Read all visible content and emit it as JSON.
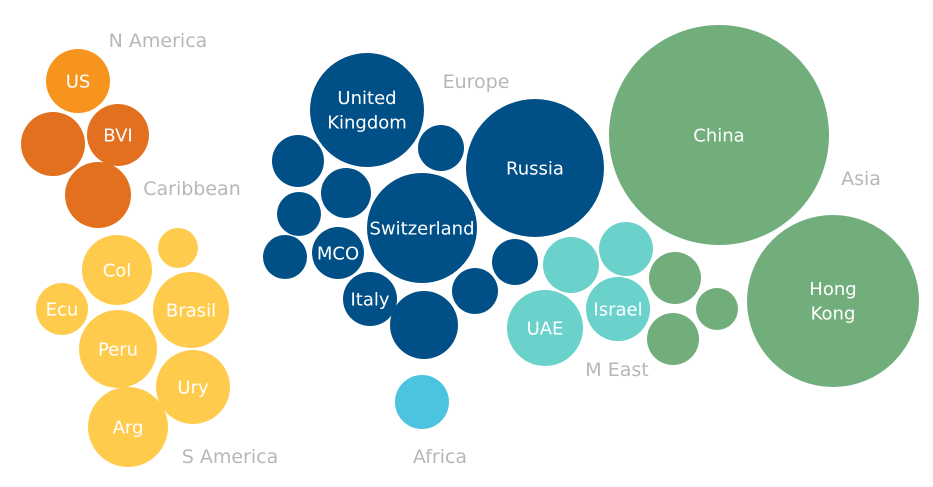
{
  "colors": {
    "north_america": "#f7941d",
    "caribbean": "#e2701f",
    "south_america": "#ffcb4c",
    "europe": "#004f86",
    "africa": "#4cc3df",
    "middle_east": "#6ad1cb",
    "asia": "#71ae7c",
    "region_label": "#b7b7b7",
    "bubble_text": "#ffffff"
  },
  "regions": [
    {
      "key": "north_america",
      "label": "N America"
    },
    {
      "key": "caribbean",
      "label": "Caribbean"
    },
    {
      "key": "south_america",
      "label": "S America"
    },
    {
      "key": "europe",
      "label": "Europe"
    },
    {
      "key": "africa",
      "label": "Africa"
    },
    {
      "key": "middle_east",
      "label": "M East"
    },
    {
      "key": "asia",
      "label": "Asia"
    }
  ],
  "bubbles": [
    {
      "region": "north_america",
      "label": "US"
    },
    {
      "region": "caribbean",
      "label": ""
    },
    {
      "region": "caribbean",
      "label": "BVI"
    },
    {
      "region": "caribbean",
      "label": ""
    },
    {
      "region": "south_america",
      "label": ""
    },
    {
      "region": "south_america",
      "label": "Col"
    },
    {
      "region": "south_america",
      "label": "Ecu"
    },
    {
      "region": "south_america",
      "label": "Brasil"
    },
    {
      "region": "south_america",
      "label": "Peru"
    },
    {
      "region": "south_america",
      "label": "Ury"
    },
    {
      "region": "south_america",
      "label": "Arg"
    },
    {
      "region": "europe",
      "label": "United Kingdom"
    },
    {
      "region": "europe",
      "label": ""
    },
    {
      "region": "europe",
      "label": ""
    },
    {
      "region": "europe",
      "label": ""
    },
    {
      "region": "europe",
      "label": ""
    },
    {
      "region": "europe",
      "label": "Switzerland"
    },
    {
      "region": "europe",
      "label": ""
    },
    {
      "region": "europe",
      "label": "MCO"
    },
    {
      "region": "europe",
      "label": "Italy"
    },
    {
      "region": "europe",
      "label": ""
    },
    {
      "region": "europe",
      "label": ""
    },
    {
      "region": "europe",
      "label": ""
    },
    {
      "region": "europe",
      "label": "Russia"
    },
    {
      "region": "africa",
      "label": ""
    },
    {
      "region": "middle_east",
      "label": ""
    },
    {
      "region": "middle_east",
      "label": ""
    },
    {
      "region": "middle_east",
      "label": "UAE"
    },
    {
      "region": "middle_east",
      "label": "Israel"
    },
    {
      "region": "asia",
      "label": "China"
    },
    {
      "region": "asia",
      "label": "Hong Kong"
    },
    {
      "region": "asia",
      "label": ""
    },
    {
      "region": "asia",
      "label": ""
    },
    {
      "region": "asia",
      "label": ""
    }
  ]
}
